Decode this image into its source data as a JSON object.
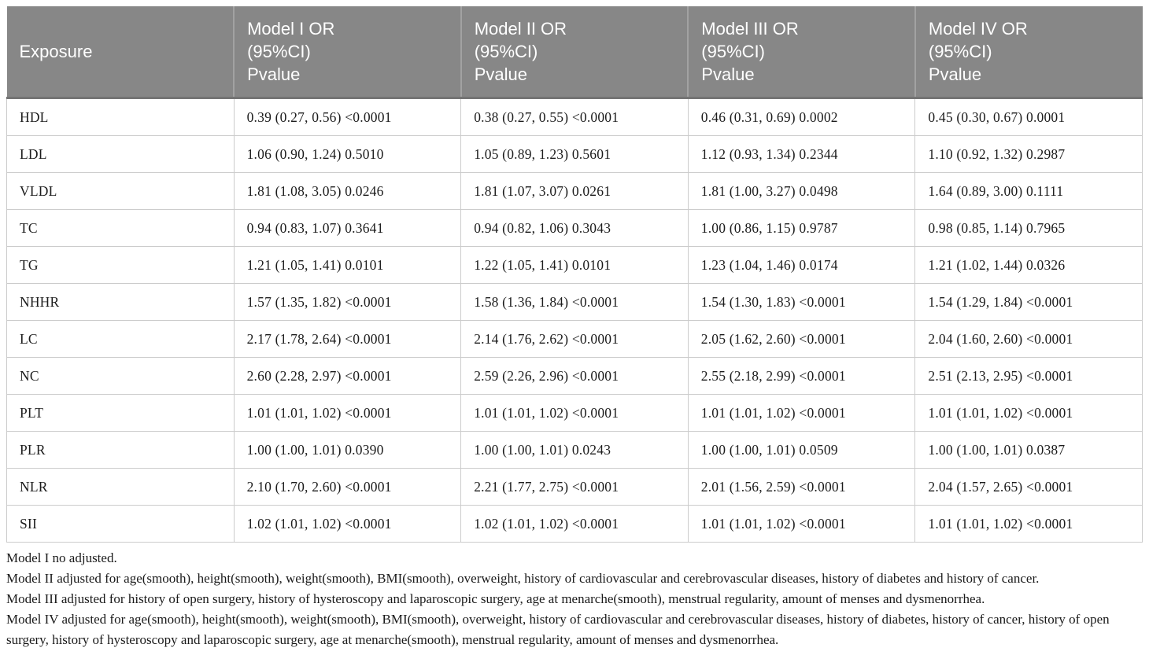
{
  "table": {
    "header": {
      "exposure": "Exposure",
      "models": [
        "Model I OR\n(95%CI)\nPvalue",
        "Model II OR\n(95%CI)\nPvalue",
        "Model III OR\n(95%CI)\nPvalue",
        "Model IV OR\n(95%CI)\nPvalue"
      ]
    },
    "rows": [
      {
        "exposure": "HDL",
        "values": [
          "0.39 (0.27, 0.56) <0.0001",
          "0.38 (0.27, 0.55) <0.0001",
          "0.46 (0.31, 0.69) 0.0002",
          "0.45 (0.30, 0.67) 0.0001"
        ]
      },
      {
        "exposure": "LDL",
        "values": [
          "1.06 (0.90, 1.24) 0.5010",
          "1.05 (0.89, 1.23) 0.5601",
          "1.12 (0.93, 1.34) 0.2344",
          "1.10 (0.92, 1.32) 0.2987"
        ]
      },
      {
        "exposure": "VLDL",
        "values": [
          "1.81 (1.08, 3.05) 0.0246",
          "1.81 (1.07, 3.07) 0.0261",
          "1.81 (1.00, 3.27) 0.0498",
          "1.64 (0.89, 3.00) 0.1111"
        ]
      },
      {
        "exposure": "TC",
        "values": [
          "0.94 (0.83, 1.07) 0.3641",
          "0.94 (0.82, 1.06) 0.3043",
          "1.00 (0.86, 1.15) 0.9787",
          "0.98 (0.85, 1.14) 0.7965"
        ]
      },
      {
        "exposure": "TG",
        "values": [
          "1.21 (1.05, 1.41) 0.0101",
          "1.22 (1.05, 1.41) 0.0101",
          "1.23 (1.04, 1.46) 0.0174",
          "1.21 (1.02, 1.44) 0.0326"
        ]
      },
      {
        "exposure": "NHHR",
        "values": [
          "1.57 (1.35, 1.82) <0.0001",
          "1.58 (1.36, 1.84) <0.0001",
          "1.54 (1.30, 1.83) <0.0001",
          "1.54 (1.29, 1.84) <0.0001"
        ]
      },
      {
        "exposure": "LC",
        "values": [
          "2.17 (1.78, 2.64) <0.0001",
          "2.14 (1.76, 2.62) <0.0001",
          "2.05 (1.62, 2.60) <0.0001",
          "2.04 (1.60, 2.60) <0.0001"
        ]
      },
      {
        "exposure": "NC",
        "values": [
          "2.60 (2.28, 2.97) <0.0001",
          "2.59 (2.26, 2.96) <0.0001",
          "2.55 (2.18, 2.99) <0.0001",
          "2.51 (2.13, 2.95) <0.0001"
        ]
      },
      {
        "exposure": "PLT",
        "values": [
          "1.01 (1.01, 1.02) <0.0001",
          "1.01 (1.01, 1.02) <0.0001",
          "1.01 (1.01, 1.02) <0.0001",
          "1.01 (1.01, 1.02) <0.0001"
        ]
      },
      {
        "exposure": "PLR",
        "values": [
          "1.00 (1.00, 1.01) 0.0390",
          "1.00 (1.00, 1.01) 0.0243",
          "1.00 (1.00, 1.01) 0.0509",
          "1.00 (1.00, 1.01) 0.0387"
        ]
      },
      {
        "exposure": "NLR",
        "values": [
          "2.10 (1.70, 2.60) <0.0001",
          "2.21 (1.77, 2.75) <0.0001",
          "2.01 (1.56, 2.59) <0.0001",
          "2.04 (1.57, 2.65) <0.0001"
        ]
      },
      {
        "exposure": "SII",
        "values": [
          "1.02 (1.01, 1.02) <0.0001",
          "1.02 (1.01, 1.02) <0.0001",
          "1.01 (1.01, 1.02) <0.0001",
          "1.01 (1.01, 1.02) <0.0001"
        ]
      }
    ]
  },
  "footnotes": [
    "Model I no adjusted.",
    "Model II adjusted for age(smooth), height(smooth), weight(smooth), BMI(smooth), overweight, history of cardiovascular and cerebrovascular diseases, history of diabetes and history of cancer.",
    "Model III adjusted for history of open surgery, history of hysteroscopy and laparoscopic surgery, age at menarche(smooth), menstrual regularity, amount of menses and dysmenorrhea.",
    "Model IV adjusted for age(smooth), height(smooth), weight(smooth), BMI(smooth), overweight, history of cardiovascular and cerebrovascular diseases, history of diabetes, history of cancer, history of open surgery, history of hysteroscopy and laparoscopic surgery, age at menarche(smooth), menstrual regularity, amount of menses and dysmenorrhea."
  ],
  "colors": {
    "header_bg": "#878787",
    "header_text": "#ffffff",
    "row_border": "#cccccc",
    "body_text": "#1c1c1c"
  }
}
